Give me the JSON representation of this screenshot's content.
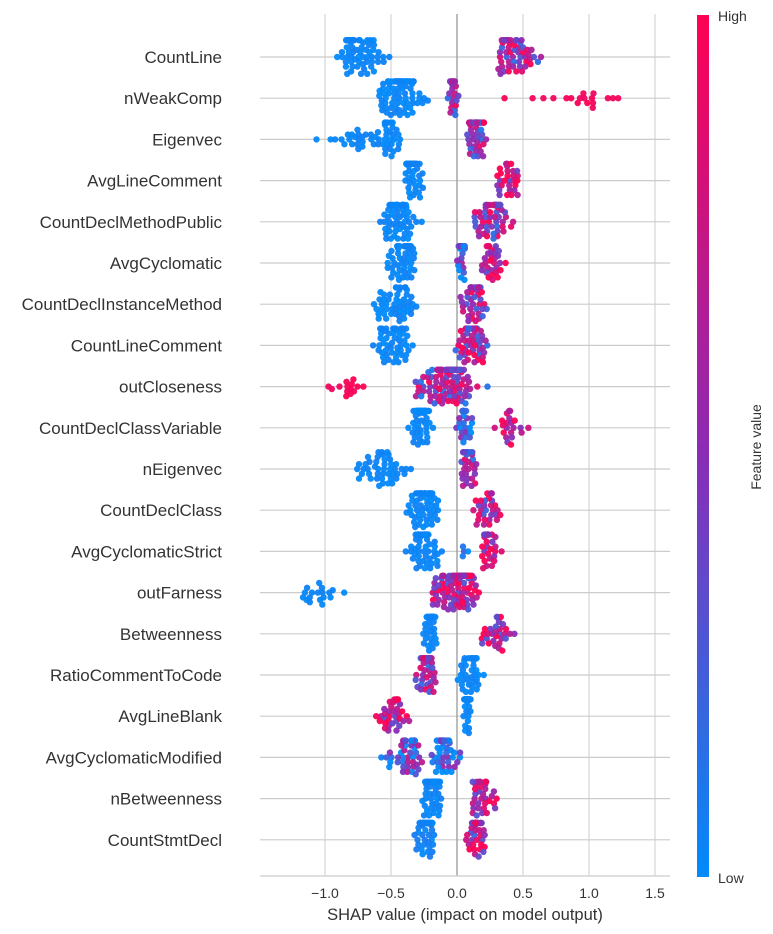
{
  "chart_data": {
    "type": "scatter",
    "subtype": "shap-beeswarm-summary",
    "title": "",
    "xlabel": "SHAP value (impact on model output)",
    "ylabel": "",
    "xlim": [
      -1.48,
      1.62
    ],
    "xticks": [
      -1.0,
      -0.5,
      0.0,
      0.5,
      1.0,
      1.5
    ],
    "xtick_labels": [
      "−1.0",
      "−0.5",
      "0.0",
      "0.5",
      "1.0",
      "1.5"
    ],
    "grid": true,
    "colorbar": {
      "label": "Feature value",
      "high_label": "High",
      "low_label": "Low",
      "low_color": "#008bfb",
      "mid_color": "#8d2ab4",
      "high_color": "#ff0052"
    },
    "features": [
      {
        "name": "CountLine",
        "clusters": [
          {
            "min": -1.0,
            "max": -0.25,
            "center": -0.78,
            "count": 70,
            "color": 0.0
          },
          {
            "min": 0.2,
            "max": 0.8,
            "center": 0.4,
            "count": 60,
            "color": 0.6
          }
        ]
      },
      {
        "name": "nWeakComp",
        "clusters": [
          {
            "min": -0.8,
            "max": -0.1,
            "center": -0.42,
            "count": 90,
            "color": 0.0
          },
          {
            "min": -0.12,
            "max": 0.05,
            "center": -0.03,
            "count": 25,
            "color": 0.5
          },
          {
            "min": 0.05,
            "max": 1.5,
            "center": 0.9,
            "count": 18,
            "color": 1.0
          }
        ]
      },
      {
        "name": "Eigenvec",
        "clusters": [
          {
            "min": -1.35,
            "max": -0.3,
            "center": -0.55,
            "count": 55,
            "color": 0.0
          },
          {
            "min": 0.0,
            "max": 0.28,
            "center": 0.14,
            "count": 60,
            "color": 0.55
          }
        ]
      },
      {
        "name": "AvgLineComment",
        "clusters": [
          {
            "min": -0.45,
            "max": -0.2,
            "center": -0.35,
            "count": 60,
            "color": 0.0
          },
          {
            "min": 0.12,
            "max": 0.58,
            "center": 0.38,
            "count": 30,
            "color": 0.75
          }
        ]
      },
      {
        "name": "CountDeclMethodPublic",
        "clusters": [
          {
            "min": -0.7,
            "max": -0.2,
            "center": -0.45,
            "count": 65,
            "color": 0.0
          },
          {
            "min": -0.05,
            "max": 0.55,
            "center": 0.28,
            "count": 60,
            "color": 0.6
          }
        ]
      },
      {
        "name": "AvgCyclomatic",
        "clusters": [
          {
            "min": -0.65,
            "max": -0.25,
            "center": -0.4,
            "count": 55,
            "color": 0.0
          },
          {
            "min": -0.05,
            "max": 0.1,
            "center": 0.04,
            "count": 30,
            "color": 0.2
          },
          {
            "min": 0.12,
            "max": 0.42,
            "center": 0.28,
            "count": 30,
            "color": 0.8
          }
        ]
      },
      {
        "name": "CountDeclInstanceMethod",
        "clusters": [
          {
            "min": -0.85,
            "max": -0.25,
            "center": -0.45,
            "count": 50,
            "color": 0.0
          },
          {
            "min": -0.07,
            "max": 0.33,
            "center": 0.15,
            "count": 45,
            "color": 0.6
          }
        ]
      },
      {
        "name": "CountLineComment",
        "clusters": [
          {
            "min": -0.77,
            "max": -0.2,
            "center": -0.5,
            "count": 50,
            "color": 0.0
          },
          {
            "min": -0.15,
            "max": 0.3,
            "center": 0.12,
            "count": 55,
            "color": 0.6
          }
        ]
      },
      {
        "name": "outCloseness",
        "clusters": [
          {
            "min": -1.08,
            "max": -0.55,
            "center": -0.8,
            "count": 14,
            "color": 1.0
          },
          {
            "min": -0.55,
            "max": 0.38,
            "center": -0.05,
            "count": 110,
            "color": 0.55
          }
        ]
      },
      {
        "name": "CountDeclClassVariable",
        "clusters": [
          {
            "min": -0.42,
            "max": -0.15,
            "center": -0.27,
            "count": 70,
            "color": 0.0
          },
          {
            "min": -0.1,
            "max": 0.2,
            "center": 0.05,
            "count": 25,
            "color": 0.1
          },
          {
            "min": 0.2,
            "max": 0.67,
            "center": 0.4,
            "count": 22,
            "color": 0.85
          }
        ]
      },
      {
        "name": "nEigenvec",
        "clusters": [
          {
            "min": -0.92,
            "max": -0.22,
            "center": -0.55,
            "count": 45,
            "color": 0.0
          },
          {
            "min": 0.0,
            "max": 0.21,
            "center": 0.08,
            "count": 40,
            "color": 0.55
          }
        ]
      },
      {
        "name": "CountDeclClass",
        "clusters": [
          {
            "min": -0.5,
            "max": -0.05,
            "center": -0.24,
            "count": 70,
            "color": 0.0
          },
          {
            "min": -0.02,
            "max": 0.48,
            "center": 0.22,
            "count": 30,
            "color": 0.65
          }
        ]
      },
      {
        "name": "AvgCyclomaticStrict",
        "clusters": [
          {
            "min": -0.45,
            "max": -0.02,
            "center": -0.27,
            "count": 65,
            "color": 0.0
          },
          {
            "min": 0.02,
            "max": 0.1,
            "center": 0.05,
            "count": 4,
            "color": 0.1
          },
          {
            "min": 0.15,
            "max": 0.37,
            "center": 0.24,
            "count": 35,
            "color": 0.75
          }
        ]
      },
      {
        "name": "outFarness",
        "clusters": [
          {
            "min": -1.35,
            "max": -0.6,
            "center": -1.1,
            "count": 18,
            "color": 0.0
          },
          {
            "min": -0.4,
            "max": 0.27,
            "center": 0.02,
            "count": 110,
            "color": 0.7
          }
        ]
      },
      {
        "name": "Betweenness",
        "clusters": [
          {
            "min": -0.32,
            "max": -0.1,
            "center": -0.2,
            "count": 55,
            "color": 0.0
          },
          {
            "min": 0.0,
            "max": 0.55,
            "center": 0.3,
            "count": 30,
            "color": 0.7
          }
        ]
      },
      {
        "name": "RatioCommentToCode",
        "clusters": [
          {
            "min": -0.4,
            "max": -0.12,
            "center": -0.22,
            "count": 55,
            "color": 0.6
          },
          {
            "min": -0.07,
            "max": 0.25,
            "center": 0.1,
            "count": 35,
            "color": 0.0
          }
        ]
      },
      {
        "name": "AvgLineBlank",
        "clusters": [
          {
            "min": -0.78,
            "max": -0.23,
            "center": -0.48,
            "count": 35,
            "color": 0.75
          },
          {
            "min": 0.02,
            "max": 0.15,
            "center": 0.08,
            "count": 60,
            "color": 0.0
          }
        ]
      },
      {
        "name": "AvgCyclomaticModified",
        "clusters": [
          {
            "min": -0.72,
            "max": -0.2,
            "center": -0.35,
            "count": 50,
            "color": 0.3
          },
          {
            "min": -0.25,
            "max": 0.1,
            "center": -0.1,
            "count": 55,
            "color": 0.15
          }
        ]
      },
      {
        "name": "nBetweenness",
        "clusters": [
          {
            "min": -0.32,
            "max": -0.05,
            "center": -0.18,
            "count": 65,
            "color": 0.0
          },
          {
            "min": -0.02,
            "max": 0.43,
            "center": 0.2,
            "count": 35,
            "color": 0.7
          }
        ]
      },
      {
        "name": "CountStmtDecl",
        "clusters": [
          {
            "min": -0.38,
            "max": -0.1,
            "center": -0.23,
            "count": 60,
            "color": 0.05
          },
          {
            "min": 0.0,
            "max": 0.3,
            "center": 0.15,
            "count": 45,
            "color": 0.65
          }
        ]
      }
    ]
  }
}
